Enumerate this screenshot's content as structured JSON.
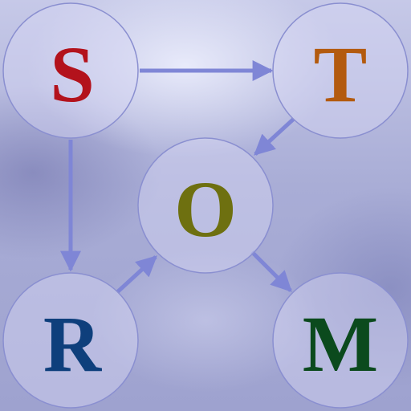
{
  "nodes": [
    {
      "id": "S",
      "label": "S",
      "color": "#b3121c"
    },
    {
      "id": "T",
      "label": "T",
      "color": "#b35a0e"
    },
    {
      "id": "O",
      "label": "O",
      "color": "#6e7010"
    },
    {
      "id": "R",
      "label": "R",
      "color": "#0e3f7c"
    },
    {
      "id": "M",
      "label": "M",
      "color": "#0b4a1d"
    }
  ],
  "edges": [
    {
      "from": "S",
      "to": "T"
    },
    {
      "from": "S",
      "to": "R"
    },
    {
      "from": "T",
      "to": "O"
    },
    {
      "from": "R",
      "to": "O"
    },
    {
      "from": "O",
      "to": "M"
    }
  ],
  "colors": {
    "edge": "#7f86d6",
    "node_stroke": "#8a8fd0"
  }
}
